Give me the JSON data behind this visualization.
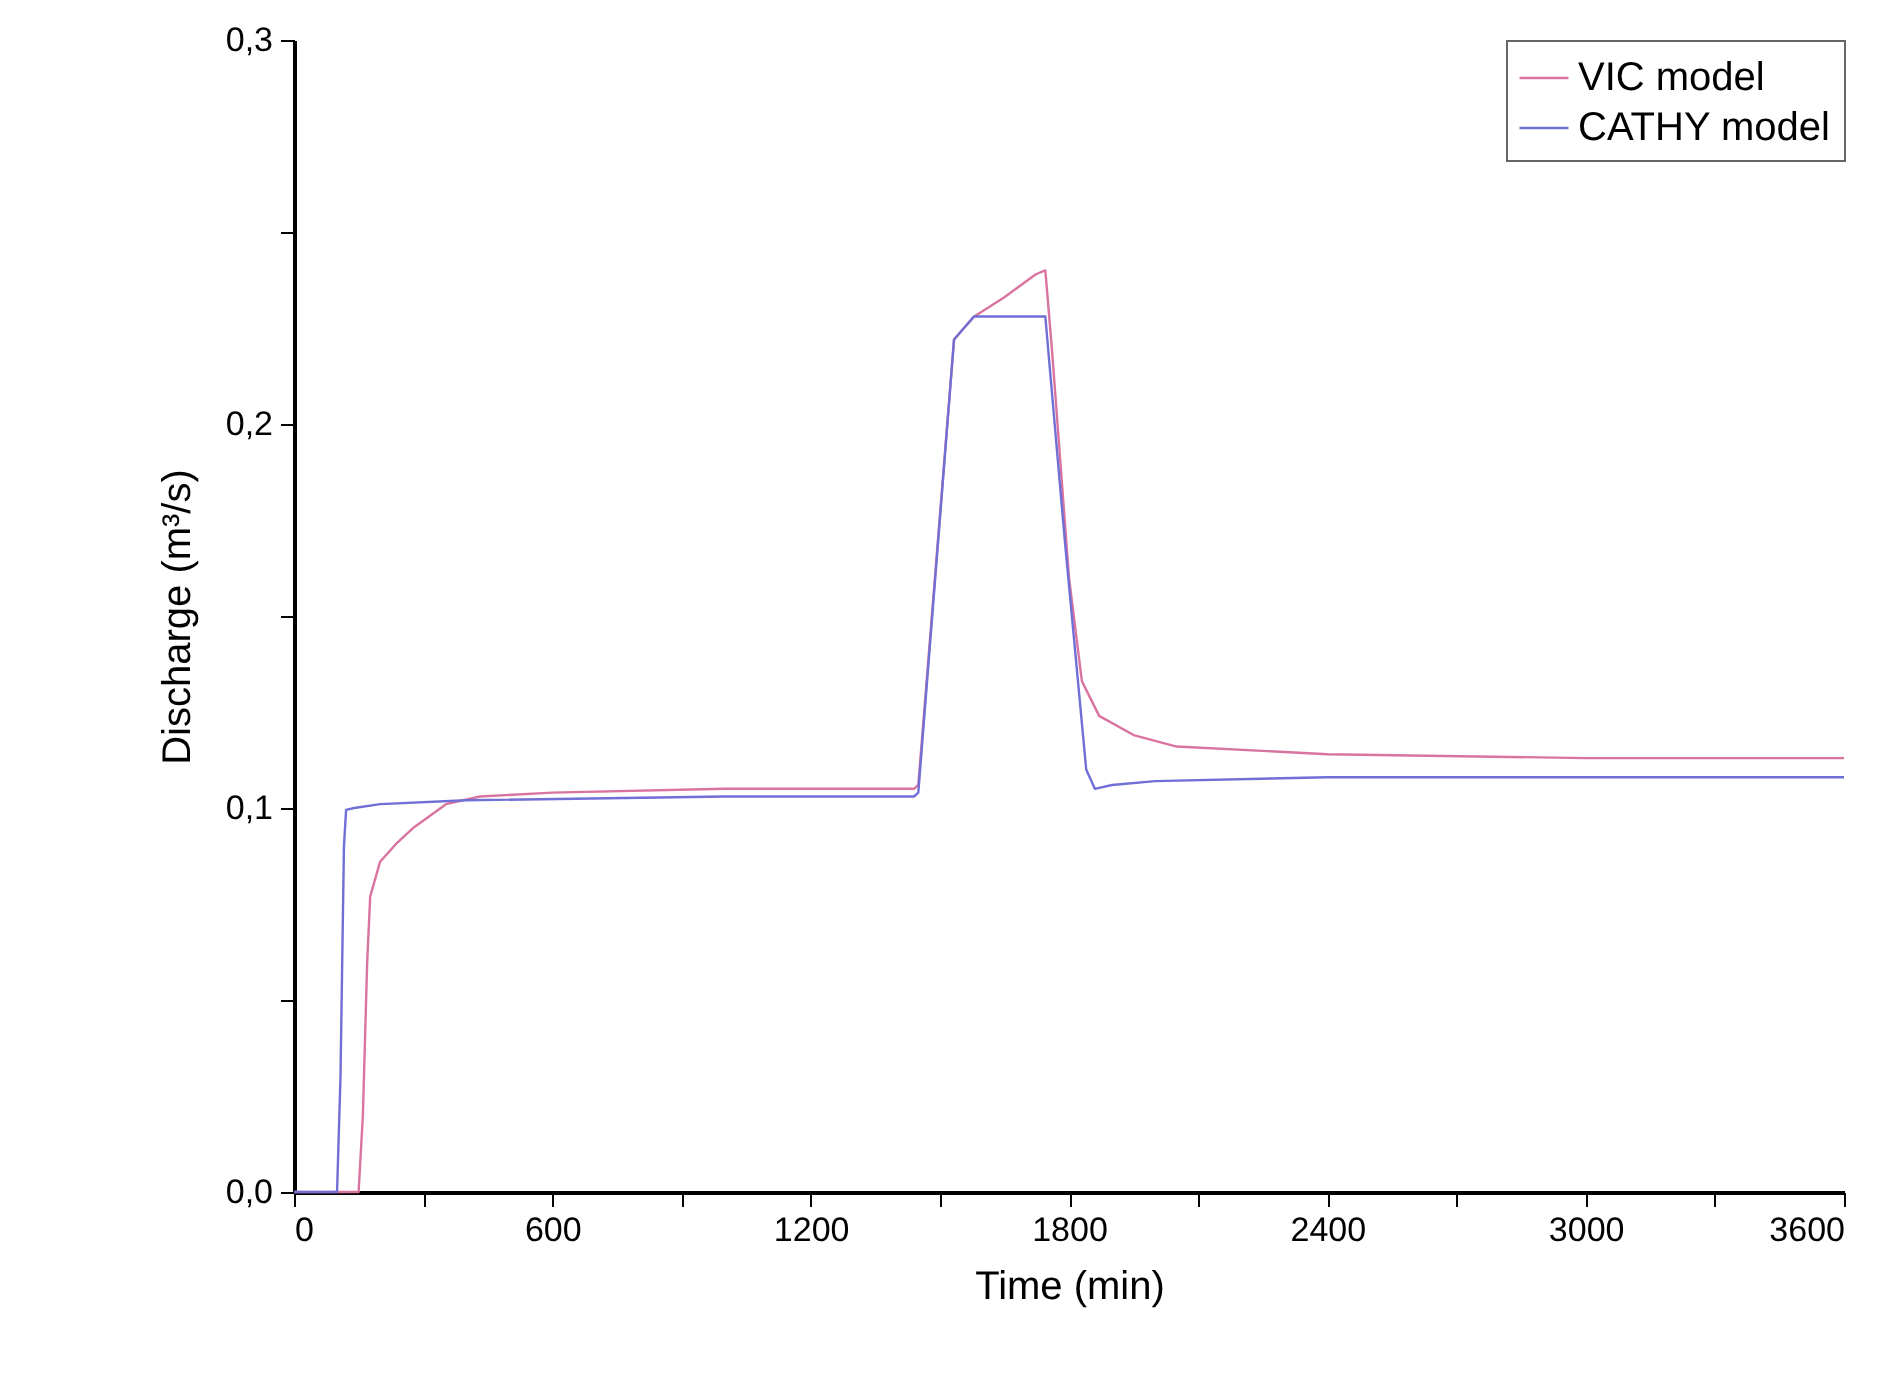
{
  "chart_data": {
    "type": "line",
    "xlabel": "Time (min)",
    "ylabel": "Discharge (m³/s)",
    "xlim": [
      0,
      3600
    ],
    "ylim": [
      0,
      0.3
    ],
    "xticks": [
      0,
      {
        "value": 300,
        "label": null
      },
      600,
      {
        "value": 900,
        "label": null
      },
      1200,
      {
        "value": 1500,
        "label": null
      },
      1800,
      {
        "value": 2100,
        "label": null
      },
      2400,
      {
        "value": 2700,
        "label": null
      },
      3000,
      {
        "value": 3300,
        "label": null
      },
      3600
    ],
    "yticks": [
      {
        "value": 0,
        "label": "0,0"
      },
      {
        "value": 0.05,
        "label": null
      },
      {
        "value": 0.1,
        "label": "0,1"
      },
      {
        "value": 0.15,
        "label": null
      },
      {
        "value": 0.2,
        "label": "0,2"
      },
      {
        "value": 0.25,
        "label": null
      },
      {
        "value": 0.3,
        "label": "0,3"
      }
    ],
    "legend": "top right",
    "grid": false,
    "marker": "none",
    "line_style": "solid",
    "series": [
      {
        "name": "VIC model",
        "color": "#d9739f",
        "x": [
          0,
          150,
          160,
          170,
          177,
          200,
          240,
          279,
          353,
          432,
          600,
          1000,
          1440,
          1450,
          1533,
          1580,
          1650,
          1723,
          1745,
          1760,
          1800,
          1830,
          1870,
          1950,
          2050,
          2400,
          3000,
          3600
        ],
        "values": [
          0,
          0,
          0.02,
          0.06,
          0.077,
          0.086,
          0.091,
          0.095,
          0.101,
          0.103,
          0.104,
          0.105,
          0.105,
          0.106,
          0.222,
          0.228,
          0.233,
          0.239,
          0.24,
          0.22,
          0.16,
          0.133,
          0.124,
          0.119,
          0.116,
          0.114,
          0.113,
          0.113
        ]
      },
      {
        "name": "CATHY model",
        "color": "#6f6fd6",
        "x": [
          0,
          100,
          108,
          116,
          121,
          140,
          200,
          400,
          1000,
          1440,
          1450,
          1533,
          1579,
          1733,
          1745,
          1790,
          1840,
          1860,
          1900,
          2000,
          2400,
          3600
        ],
        "values": [
          0,
          0,
          0.03,
          0.09,
          0.0995,
          0.1,
          0.101,
          0.102,
          0.103,
          0.103,
          0.104,
          0.222,
          0.228,
          0.228,
          0.228,
          0.17,
          0.11,
          0.105,
          0.106,
          0.107,
          0.108,
          0.108
        ]
      }
    ]
  }
}
